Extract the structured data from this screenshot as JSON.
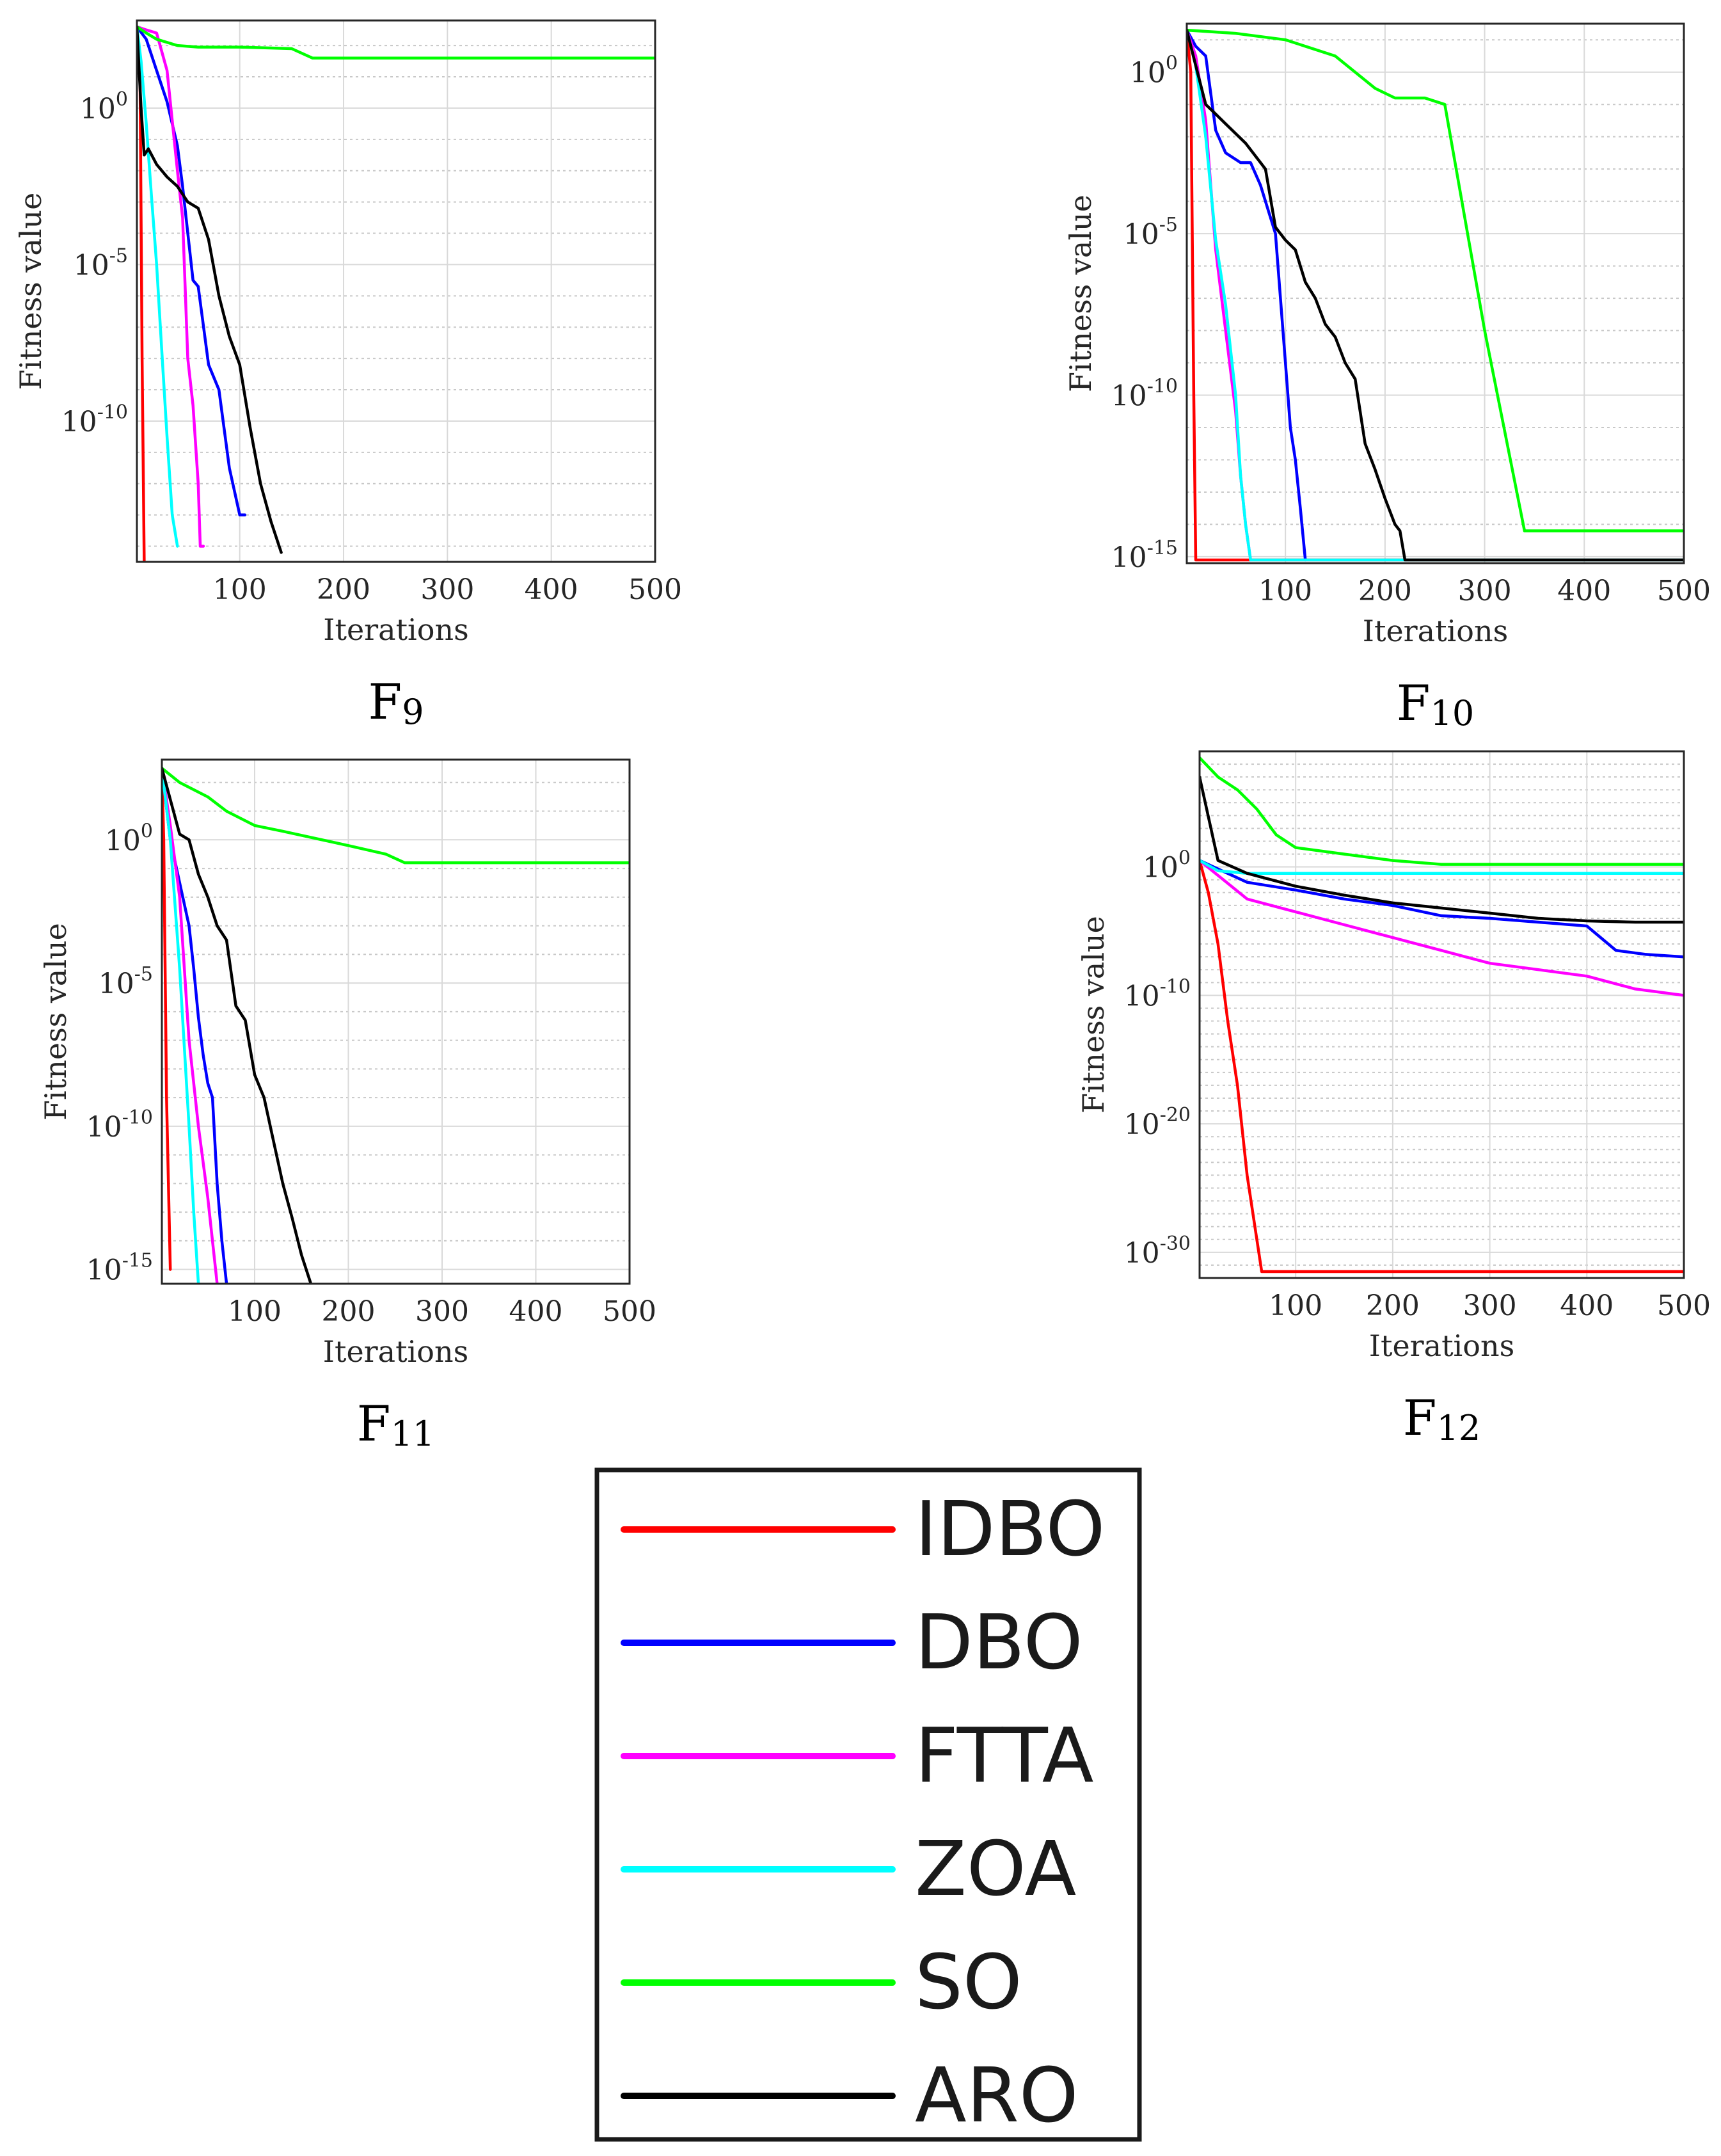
{
  "chart_data": [
    {
      "type": "line",
      "caption": "F9",
      "caption_letter": "F",
      "caption_index": "9",
      "xlabel": "Iterations",
      "ylabel": "Fitness value",
      "yscale": "log",
      "xlim": [
        1,
        500
      ],
      "ylim_exp": [
        -14.5,
        2.8
      ],
      "xticks": [
        100,
        200,
        300,
        400,
        500
      ],
      "xtick_labels": [
        "100",
        "200",
        "300",
        "400",
        "500"
      ],
      "yticks_exp": [
        0,
        -5,
        -10
      ],
      "ytick_bases": [
        "10",
        "10",
        "10"
      ],
      "ytick_exps": [
        "0",
        "-5",
        "-10"
      ],
      "grid": true,
      "series": [
        {
          "name": "IDBO",
          "color": "#ff0000",
          "x": [
            1,
            4,
            6,
            8
          ],
          "y_exp": [
            2.6,
            1.0,
            -8.0,
            -14.5
          ]
        },
        {
          "name": "DBO",
          "color": "#0000ff",
          "x": [
            1,
            10,
            20,
            30,
            40,
            45,
            55,
            60,
            70,
            80,
            90,
            100,
            105
          ],
          "y_exp": [
            2.6,
            2.2,
            1.2,
            0.2,
            -1.2,
            -2.5,
            -5.5,
            -5.7,
            -8.2,
            -9.0,
            -11.5,
            -13.0,
            -13.0
          ]
        },
        {
          "name": "FTTA",
          "color": "#ff00ff",
          "x": [
            1,
            10,
            20,
            30,
            40,
            45,
            50,
            55,
            60,
            62,
            65
          ],
          "y_exp": [
            2.6,
            2.5,
            2.4,
            1.2,
            -2.0,
            -3.5,
            -8.0,
            -9.5,
            -12.0,
            -14.0,
            -14.0
          ]
        },
        {
          "name": "ZOA",
          "color": "#00ffff",
          "x": [
            1,
            5,
            10,
            15,
            20,
            25,
            30,
            35,
            40
          ],
          "y_exp": [
            2.6,
            1.5,
            -0.5,
            -2.8,
            -5.0,
            -7.8,
            -10.5,
            -13.0,
            -14.0
          ]
        },
        {
          "name": "SO",
          "color": "#00ff00",
          "x": [
            1,
            10,
            20,
            40,
            60,
            100,
            150,
            170,
            180,
            200,
            300,
            400,
            500
          ],
          "y_exp": [
            2.6,
            2.4,
            2.2,
            2.0,
            1.95,
            1.95,
            1.9,
            1.6,
            1.6,
            1.6,
            1.6,
            1.6,
            1.6
          ]
        },
        {
          "name": "ARO",
          "color": "#000000",
          "x": [
            1,
            5,
            8,
            12,
            20,
            30,
            40,
            50,
            60,
            70,
            80,
            90,
            100,
            110,
            120,
            130,
            140
          ],
          "y_exp": [
            2.6,
            0.0,
            -1.5,
            -1.3,
            -1.8,
            -2.2,
            -2.5,
            -3.0,
            -3.2,
            -4.2,
            -6.0,
            -7.3,
            -8.2,
            -10.2,
            -12.0,
            -13.2,
            -14.2
          ]
        }
      ]
    },
    {
      "type": "line",
      "caption": "F10",
      "caption_letter": "F",
      "caption_index": "10",
      "xlabel": "Iterations",
      "ylabel": "Fitness value",
      "yscale": "log",
      "xlim": [
        1,
        500
      ],
      "ylim_exp": [
        -15.2,
        1.5
      ],
      "xticks": [
        100,
        200,
        300,
        400,
        500
      ],
      "xtick_labels": [
        "100",
        "200",
        "300",
        "400",
        "500"
      ],
      "yticks_exp": [
        0,
        -5,
        -10,
        -15
      ],
      "ytick_bases": [
        "10",
        "10",
        "10",
        "10"
      ],
      "ytick_exps": [
        "0",
        "-5",
        "-10",
        "-15"
      ],
      "grid": true,
      "series": [
        {
          "name": "IDBO",
          "color": "#ff0000",
          "x": [
            1,
            5,
            8,
            10,
            500
          ],
          "y_exp": [
            1.3,
            0.0,
            -10.0,
            -15.1,
            -15.1
          ]
        },
        {
          "name": "DBO",
          "color": "#0000ff",
          "x": [
            1,
            10,
            20,
            30,
            40,
            55,
            65,
            75,
            90,
            95,
            100,
            105,
            110,
            115,
            120
          ],
          "y_exp": [
            1.3,
            0.8,
            0.5,
            -1.8,
            -2.5,
            -2.8,
            -2.8,
            -3.5,
            -5.0,
            -7.0,
            -9.0,
            -11.0,
            -12.0,
            -13.5,
            -15.1
          ]
        },
        {
          "name": "FTTA",
          "color": "#ff00ff",
          "x": [
            1,
            10,
            20,
            30,
            40,
            50,
            55,
            60,
            65
          ],
          "y_exp": [
            1.3,
            0.5,
            -1.5,
            -5.5,
            -8.0,
            -10.5,
            -12.5,
            -14.0,
            -15.1
          ]
        },
        {
          "name": "ZOA",
          "color": "#00ffff",
          "x": [
            1,
            10,
            20,
            30,
            40,
            50,
            55,
            60,
            65,
            70,
            500
          ],
          "y_exp": [
            1.3,
            0.2,
            -2.0,
            -5.2,
            -7.2,
            -10.0,
            -12.5,
            -14.0,
            -15.1,
            -15.1,
            -15.1
          ]
        },
        {
          "name": "SO",
          "color": "#00ff00",
          "x": [
            1,
            50,
            100,
            150,
            190,
            210,
            240,
            260,
            300,
            340,
            360,
            500
          ],
          "y_exp": [
            1.3,
            1.2,
            1.0,
            0.5,
            -0.5,
            -0.8,
            -0.8,
            -1.0,
            -8.0,
            -14.2,
            -14.2,
            -14.2
          ]
        },
        {
          "name": "ARO",
          "color": "#000000",
          "x": [
            1,
            10,
            20,
            30,
            40,
            60,
            80,
            90,
            100,
            110,
            120,
            130,
            140,
            150,
            160,
            170,
            180,
            190,
            200,
            210,
            215,
            220,
            500
          ],
          "y_exp": [
            1.3,
            0.2,
            -1.0,
            -1.3,
            -1.6,
            -2.2,
            -3.0,
            -4.8,
            -5.2,
            -5.5,
            -6.5,
            -7.0,
            -7.8,
            -8.2,
            -9.0,
            -9.5,
            -11.5,
            -12.3,
            -13.2,
            -14.0,
            -14.2,
            -15.1,
            -15.1
          ]
        }
      ]
    },
    {
      "type": "line",
      "caption": "F11",
      "caption_letter": "F",
      "caption_index": "11",
      "xlabel": "Iterations",
      "ylabel": "Fitness value",
      "yscale": "log",
      "xlim": [
        1,
        500
      ],
      "ylim_exp": [
        -15.5,
        2.8
      ],
      "xticks": [
        100,
        200,
        300,
        400,
        500
      ],
      "xtick_labels": [
        "100",
        "200",
        "300",
        "400",
        "500"
      ],
      "yticks_exp": [
        0,
        -5,
        -10,
        -15
      ],
      "ytick_bases": [
        "10",
        "10",
        "10",
        "10"
      ],
      "ytick_exps": [
        "0",
        "-5",
        "-10",
        "-15"
      ],
      "grid": true,
      "series": [
        {
          "name": "IDBO",
          "color": "#ff0000",
          "x": [
            1,
            3,
            6,
            10
          ],
          "y_exp": [
            2.5,
            0.0,
            -9.0,
            -15.0
          ]
        },
        {
          "name": "DBO",
          "color": "#0000ff",
          "x": [
            1,
            10,
            20,
            30,
            35,
            40,
            45,
            50,
            55,
            60,
            65,
            70
          ],
          "y_exp": [
            2.5,
            0.0,
            -1.5,
            -3.0,
            -4.5,
            -6.2,
            -7.5,
            -8.5,
            -9.0,
            -12.0,
            -14.0,
            -15.5
          ]
        },
        {
          "name": "FTTA",
          "color": "#ff00ff",
          "x": [
            1,
            10,
            20,
            30,
            40,
            50,
            55,
            60
          ],
          "y_exp": [
            2.5,
            0.5,
            -2.0,
            -7.0,
            -10.0,
            -12.5,
            -14.0,
            -15.5
          ]
        },
        {
          "name": "ZOA",
          "color": "#00ffff",
          "x": [
            1,
            10,
            20,
            30,
            35,
            40
          ],
          "y_exp": [
            2.5,
            0.0,
            -4.5,
            -10.0,
            -13.0,
            -15.5
          ]
        },
        {
          "name": "SO",
          "color": "#00ff00",
          "x": [
            1,
            20,
            50,
            70,
            100,
            130,
            200,
            240,
            260,
            300,
            500
          ],
          "y_exp": [
            2.5,
            2.0,
            1.5,
            1.0,
            0.5,
            0.3,
            -0.2,
            -0.5,
            -0.8,
            -0.8,
            -0.8
          ]
        },
        {
          "name": "ARO",
          "color": "#000000",
          "x": [
            1,
            20,
            30,
            40,
            50,
            60,
            70,
            80,
            90,
            100,
            110,
            120,
            130,
            140,
            150,
            160
          ],
          "y_exp": [
            2.5,
            0.2,
            0.0,
            -1.2,
            -2.0,
            -3.0,
            -3.5,
            -5.8,
            -6.3,
            -8.2,
            -9.0,
            -10.5,
            -12.0,
            -13.2,
            -14.5,
            -15.5
          ]
        }
      ]
    },
    {
      "type": "line",
      "caption": "F12",
      "caption_letter": "F",
      "caption_index": "12",
      "xlabel": "Iterations",
      "ylabel": "Fitness value",
      "yscale": "log",
      "xlim": [
        1,
        500
      ],
      "ylim_exp": [
        -32,
        9
      ],
      "xticks": [
        100,
        200,
        300,
        400,
        500
      ],
      "xtick_labels": [
        "100",
        "200",
        "300",
        "400",
        "500"
      ],
      "yticks_exp": [
        0,
        -10,
        -20,
        -30
      ],
      "ytick_bases": [
        "10",
        "10",
        "10",
        "10"
      ],
      "ytick_exps": [
        "0",
        "-10",
        "-20",
        "-30"
      ],
      "grid": true,
      "series": [
        {
          "name": "IDBO",
          "color": "#ff0000",
          "x": [
            1,
            10,
            20,
            30,
            40,
            50,
            60,
            65,
            70,
            500
          ],
          "y_exp": [
            0.5,
            -2.0,
            -6.0,
            -12.0,
            -17.0,
            -24.0,
            -29.0,
            -31.5,
            -31.5,
            -31.5
          ]
        },
        {
          "name": "DBO",
          "color": "#0000ff",
          "x": [
            1,
            50,
            100,
            150,
            200,
            250,
            300,
            350,
            400,
            430,
            460,
            500
          ],
          "y_exp": [
            0.5,
            -1.2,
            -1.8,
            -2.5,
            -3.0,
            -3.8,
            -4.0,
            -4.3,
            -4.6,
            -6.5,
            -6.8,
            -7.0
          ]
        },
        {
          "name": "FTTA",
          "color": "#ff00ff",
          "x": [
            1,
            50,
            100,
            150,
            200,
            250,
            300,
            350,
            400,
            450,
            500
          ],
          "y_exp": [
            0.5,
            -2.5,
            -3.5,
            -4.5,
            -5.5,
            -6.5,
            -7.5,
            -8.0,
            -8.5,
            -9.5,
            -10.0
          ]
        },
        {
          "name": "ZOA",
          "color": "#00ffff",
          "x": [
            1,
            20,
            50,
            100,
            200,
            300,
            400,
            500
          ],
          "y_exp": [
            0.5,
            -0.3,
            -0.5,
            -0.5,
            -0.5,
            -0.5,
            -0.5,
            -0.5
          ]
        },
        {
          "name": "SO",
          "color": "#00ff00",
          "x": [
            1,
            20,
            40,
            60,
            80,
            100,
            150,
            200,
            250,
            300,
            400,
            500
          ],
          "y_exp": [
            8.5,
            7.0,
            6.0,
            4.5,
            2.5,
            1.5,
            1.0,
            0.5,
            0.2,
            0.2,
            0.2,
            0.2
          ]
        },
        {
          "name": "ARO",
          "color": "#000000",
          "x": [
            1,
            20,
            50,
            100,
            150,
            200,
            250,
            300,
            350,
            400,
            450,
            500
          ],
          "y_exp": [
            7.0,
            0.5,
            -0.5,
            -1.5,
            -2.2,
            -2.8,
            -3.2,
            -3.6,
            -4.0,
            -4.2,
            -4.3,
            -4.3
          ]
        }
      ]
    }
  ],
  "legend": {
    "entries": [
      {
        "label": "IDBO",
        "color": "#ff0000"
      },
      {
        "label": "DBO",
        "color": "#0000ff"
      },
      {
        "label": "FTTA",
        "color": "#ff00ff"
      },
      {
        "label": "ZOA",
        "color": "#00ffff"
      },
      {
        "label": "SO",
        "color": "#00ff00"
      },
      {
        "label": "ARO",
        "color": "#000000"
      }
    ]
  }
}
